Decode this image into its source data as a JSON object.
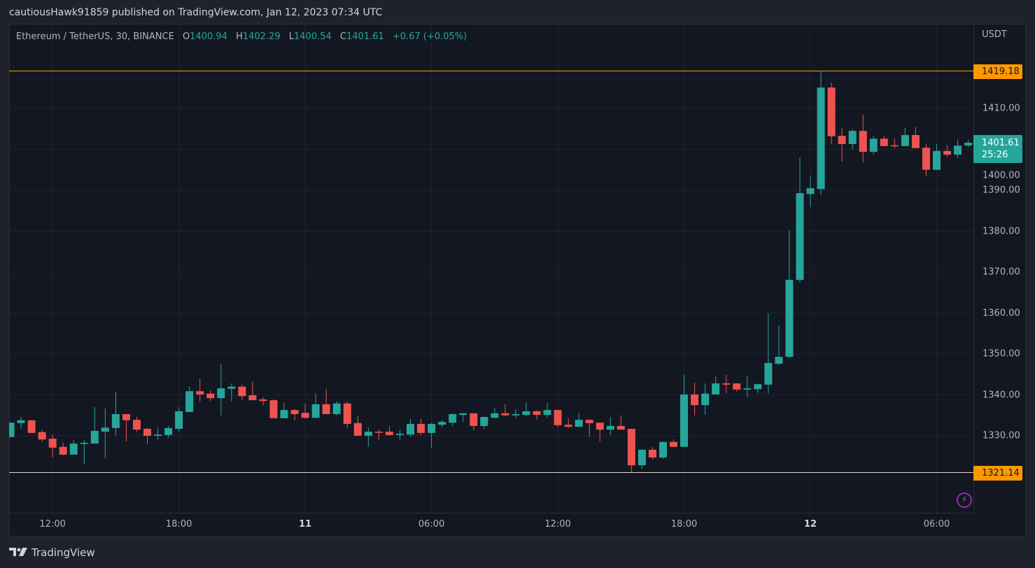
{
  "header": {
    "published": "cautiousHawk91859 published on TradingView.com, Jan 12, 2023 07:34 UTC"
  },
  "legend": {
    "symbol": "Ethereum / TetherUS, 30, BINANCE",
    "o_label": "O",
    "o": "1400.94",
    "h_label": "H",
    "h": "1402.29",
    "l_label": "L",
    "l": "1400.54",
    "c_label": "C",
    "c": "1401.61",
    "change": "+0.67 (+0.05%)"
  },
  "price_axis": {
    "currency": "USDT",
    "high_badge": "1419.18",
    "low_badge": "1321.14",
    "last_price": "1401.61",
    "countdown": "25:26"
  },
  "footer": {
    "brand": "TradingView"
  },
  "colors": {
    "up": "#26a69a",
    "down": "#ef5350",
    "hl_line": "#ff9800",
    "bg": "#131722",
    "grid": "#1f2330"
  },
  "chart_data": {
    "type": "candlestick",
    "title": "Ethereum / TetherUS, 30, BINANCE",
    "interval": "30",
    "ylim": [
      1313,
      1432
    ],
    "y_ticks": [
      "1330.00",
      "1340.00",
      "1350.00",
      "1360.00",
      "1370.00",
      "1380.00",
      "1390.00",
      "1400.00",
      "1410.00"
    ],
    "x_ticks": [
      {
        "label": "12:00",
        "bold": false
      },
      {
        "label": "18:00",
        "bold": false
      },
      {
        "label": "11",
        "bold": true
      },
      {
        "label": "06:00",
        "bold": false
      },
      {
        "label": "12:00",
        "bold": false
      },
      {
        "label": "18:00",
        "bold": false
      },
      {
        "label": "12",
        "bold": true
      },
      {
        "label": "06:00",
        "bold": false
      }
    ],
    "grid": true,
    "high_line": 1419.18,
    "low_line": 1321.14,
    "ohlc": [
      [
        1329.7,
        1333.2,
        1329.7,
        1333.2
      ],
      [
        1333.1,
        1334.6,
        1331.7,
        1333.8
      ],
      [
        1333.8,
        1333.8,
        1330.7,
        1330.7
      ],
      [
        1330.9,
        1331.4,
        1328.5,
        1329.1
      ],
      [
        1329.3,
        1330.2,
        1324.7,
        1327.1
      ],
      [
        1327.3,
        1328.3,
        1325.2,
        1325.4
      ],
      [
        1325.4,
        1329.0,
        1325.4,
        1328.1
      ],
      [
        1328.0,
        1329.0,
        1323.0,
        1328.3
      ],
      [
        1328.1,
        1337.0,
        1328.1,
        1331.2
      ],
      [
        1331.0,
        1336.7,
        1324.5,
        1332.0
      ],
      [
        1331.9,
        1340.8,
        1330.0,
        1335.3
      ],
      [
        1335.3,
        1335.3,
        1328.6,
        1333.8
      ],
      [
        1333.9,
        1334.6,
        1331.0,
        1331.5
      ],
      [
        1331.7,
        1332.0,
        1328.0,
        1330.0
      ],
      [
        1330.0,
        1332.0,
        1329.0,
        1330.3
      ],
      [
        1330.2,
        1332.4,
        1329.5,
        1331.9
      ],
      [
        1331.7,
        1337.0,
        1331.0,
        1336.0
      ],
      [
        1335.8,
        1342.1,
        1335.8,
        1340.9
      ],
      [
        1340.9,
        1344.0,
        1338.4,
        1340.1
      ],
      [
        1340.3,
        1341.1,
        1338.5,
        1339.2
      ],
      [
        1339.2,
        1347.6,
        1335.0,
        1341.6
      ],
      [
        1341.5,
        1342.8,
        1338.4,
        1342.0
      ],
      [
        1342.0,
        1342.5,
        1338.7,
        1339.7
      ],
      [
        1339.9,
        1343.2,
        1338.7,
        1338.7
      ],
      [
        1338.9,
        1339.4,
        1337.4,
        1338.5
      ],
      [
        1338.7,
        1338.9,
        1334.3,
        1334.3
      ],
      [
        1334.3,
        1338.0,
        1334.3,
        1336.3
      ],
      [
        1336.3,
        1336.5,
        1333.8,
        1335.3
      ],
      [
        1335.6,
        1337.9,
        1334.2,
        1334.4
      ],
      [
        1334.4,
        1340.3,
        1334.4,
        1337.7
      ],
      [
        1337.7,
        1341.5,
        1335.3,
        1335.3
      ],
      [
        1335.3,
        1338.5,
        1335.0,
        1337.9
      ],
      [
        1337.9,
        1338.4,
        1331.9,
        1332.9
      ],
      [
        1333.1,
        1334.8,
        1330.0,
        1330.0
      ],
      [
        1330.0,
        1332.0,
        1327.3,
        1331.0
      ],
      [
        1331.0,
        1331.5,
        1329.0,
        1330.8
      ],
      [
        1331.0,
        1332.4,
        1330.0,
        1330.2
      ],
      [
        1330.2,
        1331.4,
        1329.0,
        1330.5
      ],
      [
        1330.3,
        1334.1,
        1329.8,
        1332.9
      ],
      [
        1332.9,
        1334.1,
        1330.2,
        1330.7
      ],
      [
        1330.7,
        1333.2,
        1327.1,
        1332.9
      ],
      [
        1332.7,
        1333.8,
        1332.0,
        1333.4
      ],
      [
        1333.2,
        1335.5,
        1332.4,
        1335.3
      ],
      [
        1335.1,
        1335.6,
        1333.4,
        1335.5
      ],
      [
        1335.5,
        1335.5,
        1331.4,
        1332.4
      ],
      [
        1332.4,
        1334.6,
        1331.7,
        1334.6
      ],
      [
        1334.4,
        1336.8,
        1334.3,
        1335.5
      ],
      [
        1335.5,
        1337.7,
        1334.8,
        1335.0
      ],
      [
        1335.0,
        1336.5,
        1334.3,
        1335.3
      ],
      [
        1335.1,
        1338.2,
        1334.8,
        1336.0
      ],
      [
        1336.0,
        1336.2,
        1334.0,
        1335.1
      ],
      [
        1335.1,
        1338.0,
        1334.4,
        1336.3
      ],
      [
        1336.3,
        1336.3,
        1332.2,
        1332.6
      ],
      [
        1332.7,
        1334.3,
        1331.9,
        1332.2
      ],
      [
        1332.2,
        1335.6,
        1332.2,
        1333.9
      ],
      [
        1333.9,
        1334.0,
        1329.7,
        1333.1
      ],
      [
        1333.2,
        1333.2,
        1328.6,
        1331.5
      ],
      [
        1331.5,
        1334.6,
        1330.2,
        1332.4
      ],
      [
        1332.4,
        1335.0,
        1331.5,
        1331.5
      ],
      [
        1331.7,
        1331.7,
        1321.14,
        1322.8
      ],
      [
        1322.8,
        1326.6,
        1321.8,
        1326.6
      ],
      [
        1326.6,
        1327.3,
        1324.2,
        1324.7
      ],
      [
        1324.7,
        1328.6,
        1324.3,
        1328.5
      ],
      [
        1328.5,
        1329.1,
        1327.3,
        1327.3
      ],
      [
        1327.3,
        1344.9,
        1327.3,
        1340.1
      ],
      [
        1340.1,
        1343.0,
        1335.0,
        1337.5
      ],
      [
        1337.5,
        1342.8,
        1335.1,
        1340.3
      ],
      [
        1340.1,
        1344.5,
        1340.1,
        1342.8
      ],
      [
        1342.8,
        1344.9,
        1340.4,
        1342.5
      ],
      [
        1342.8,
        1342.8,
        1340.8,
        1341.3
      ],
      [
        1341.3,
        1344.7,
        1339.4,
        1341.6
      ],
      [
        1341.4,
        1342.8,
        1340.4,
        1342.6
      ],
      [
        1342.5,
        1359.9,
        1340.3,
        1347.8
      ],
      [
        1347.6,
        1357.0,
        1347.3,
        1349.3
      ],
      [
        1349.3,
        1380.2,
        1349.0,
        1368.1
      ],
      [
        1368.1,
        1398.0,
        1367.5,
        1389.3
      ],
      [
        1389.1,
        1393.6,
        1385.9,
        1390.5
      ],
      [
        1390.3,
        1419.18,
        1388.8,
        1415.1
      ],
      [
        1415.1,
        1416.3,
        1401.3,
        1403.2
      ],
      [
        1403.3,
        1405.2,
        1397.0,
        1401.3
      ],
      [
        1401.3,
        1405.0,
        1400.0,
        1404.5
      ],
      [
        1404.5,
        1408.5,
        1396.8,
        1399.4
      ],
      [
        1399.4,
        1403.3,
        1398.8,
        1402.6
      ],
      [
        1402.6,
        1403.3,
        1400.8,
        1400.8
      ],
      [
        1401.0,
        1402.6,
        1400.3,
        1400.8
      ],
      [
        1400.8,
        1405.3,
        1400.8,
        1403.5
      ],
      [
        1403.5,
        1405.5,
        1400.3,
        1400.3
      ],
      [
        1400.4,
        1401.3,
        1393.4,
        1395.0
      ],
      [
        1395.0,
        1401.3,
        1395.0,
        1399.6
      ],
      [
        1399.6,
        1401.0,
        1398.2,
        1398.7
      ],
      [
        1398.7,
        1402.4,
        1397.8,
        1400.9
      ],
      [
        1400.94,
        1402.29,
        1400.54,
        1401.61
      ]
    ]
  }
}
